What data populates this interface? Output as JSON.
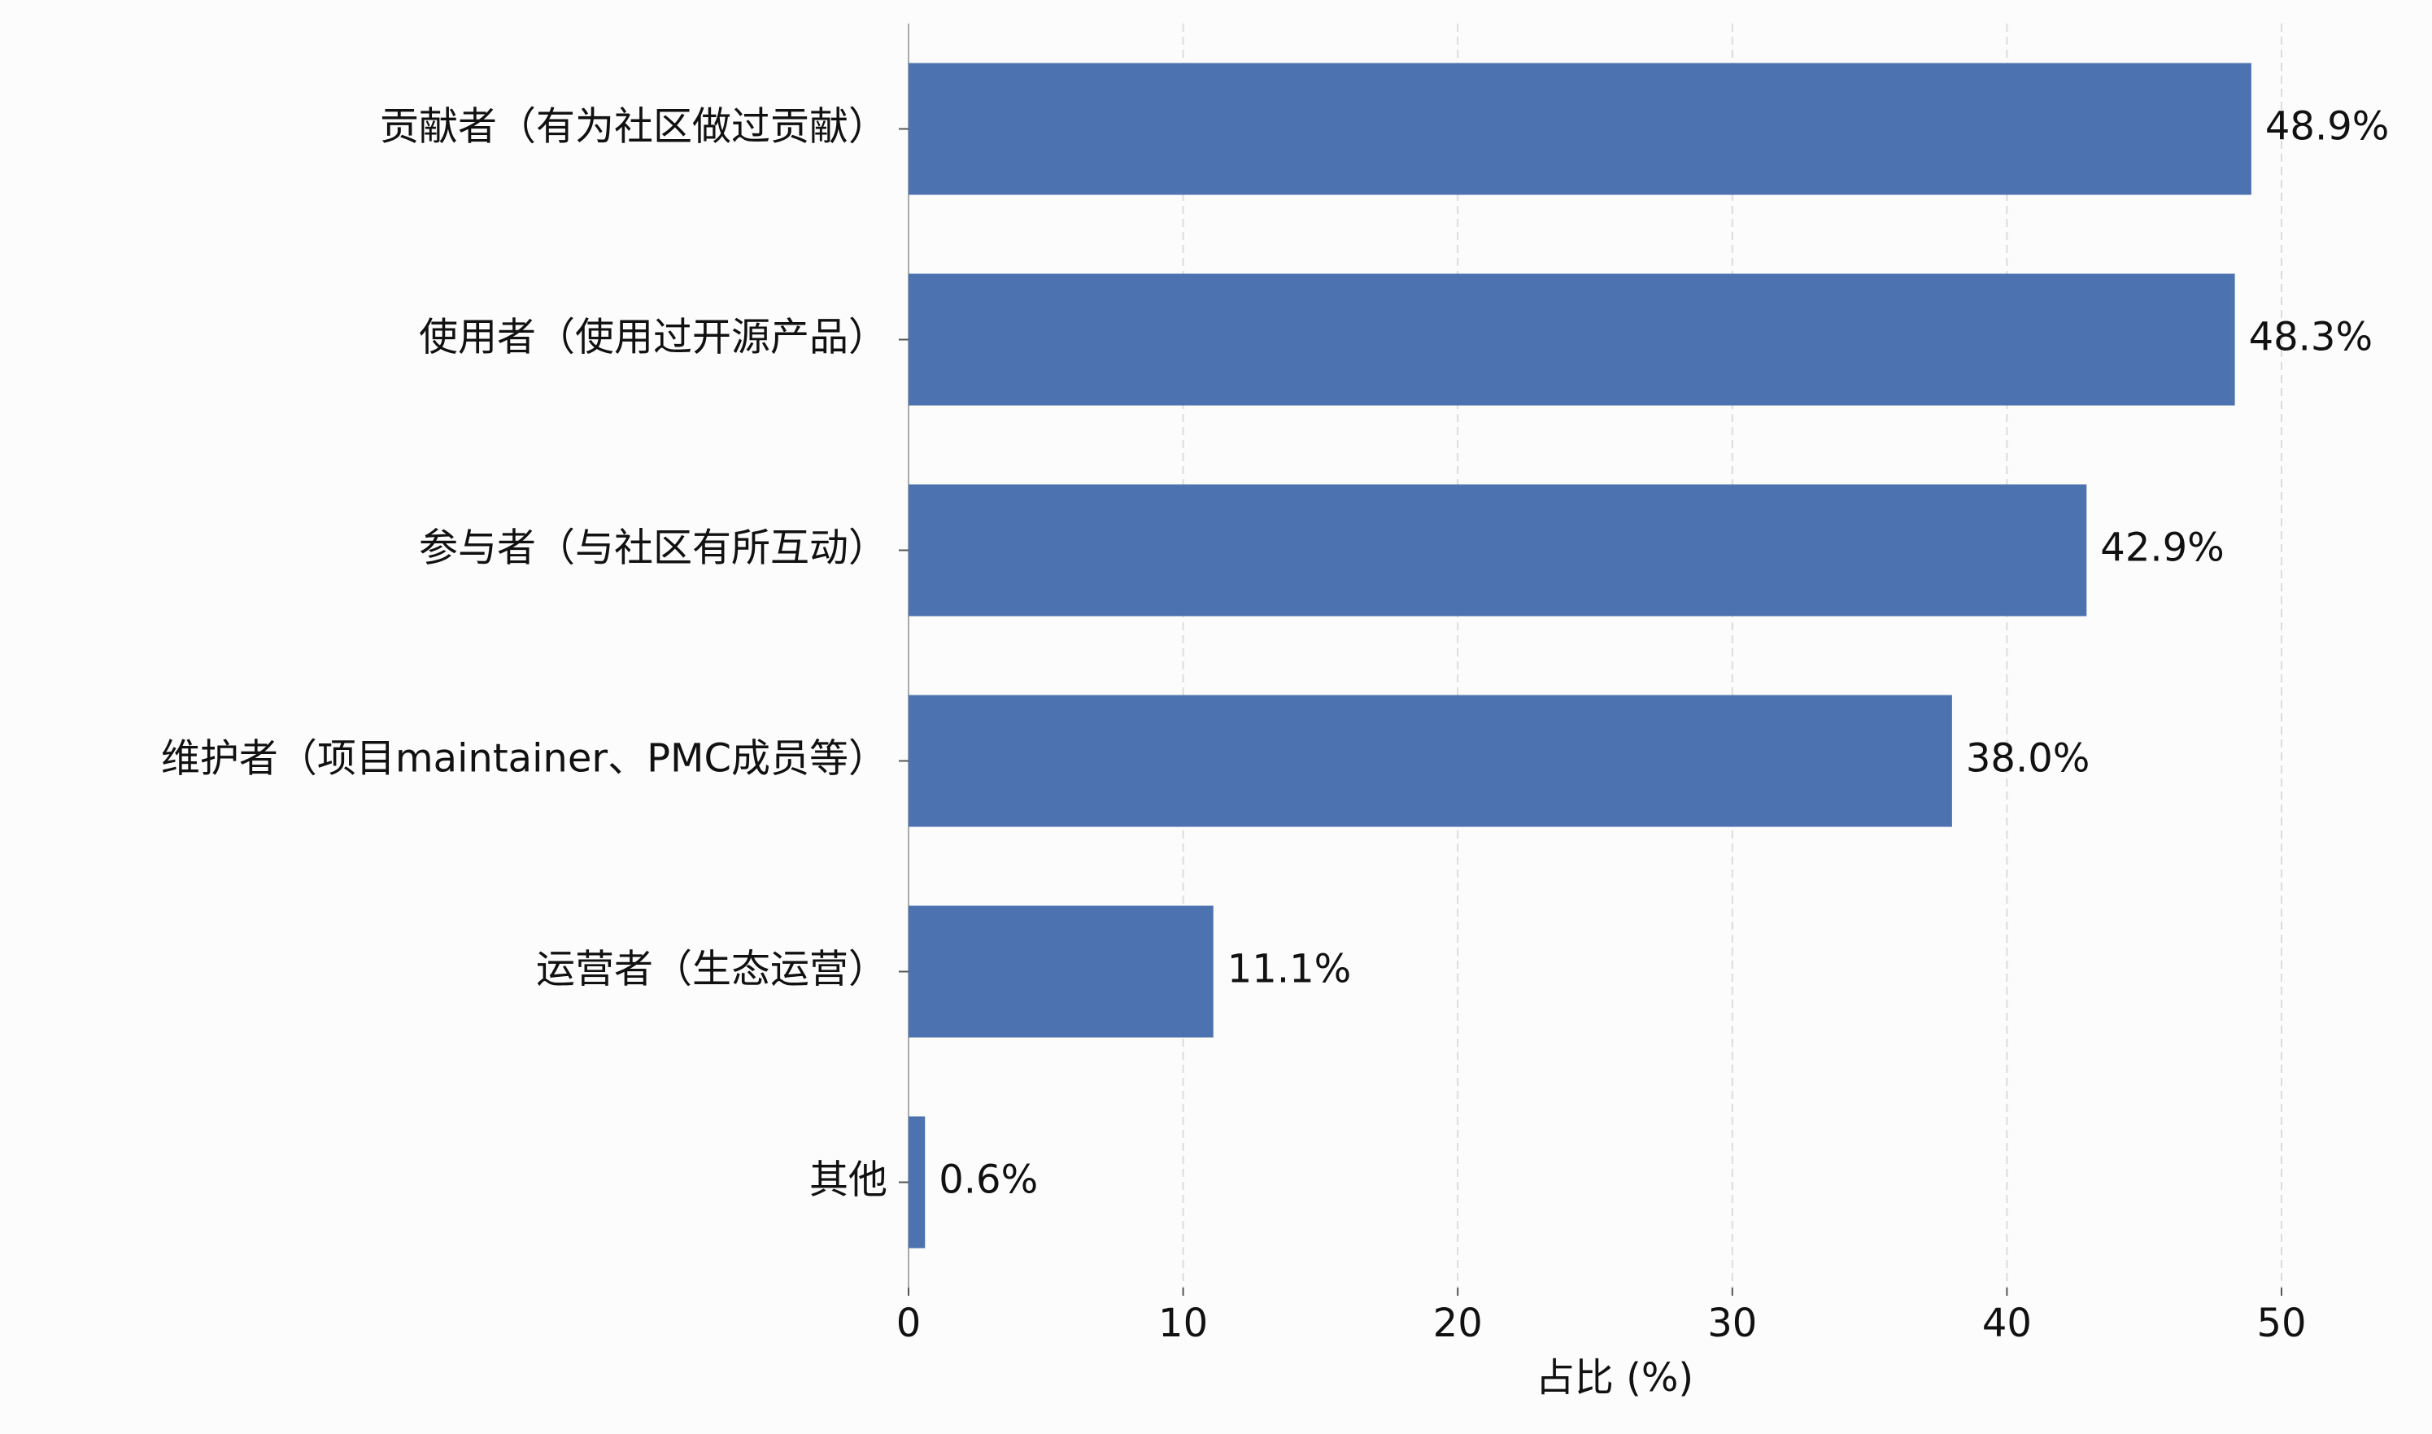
{
  "chart_data": {
    "type": "barh",
    "xlabel": "占比 (%)",
    "categories": [
      "贡献者（有为社区做过贡献）",
      "使用者（使用过开源产品）",
      "参与者（与社区有所互动）",
      "维护者（项目maintainer、PMC成员等）",
      "运营者（生态运营）",
      "其他"
    ],
    "values": [
      48.9,
      48.3,
      42.9,
      38.0,
      11.1,
      0.6
    ],
    "value_labels": [
      "48.9%",
      "48.3%",
      "42.9%",
      "38.0%",
      "11.1%",
      "0.6%"
    ],
    "color": "#4c72b0",
    "xlim": [
      0,
      50
    ],
    "xticks": [
      0,
      10,
      20,
      30,
      40,
      50
    ],
    "grid": true
  }
}
